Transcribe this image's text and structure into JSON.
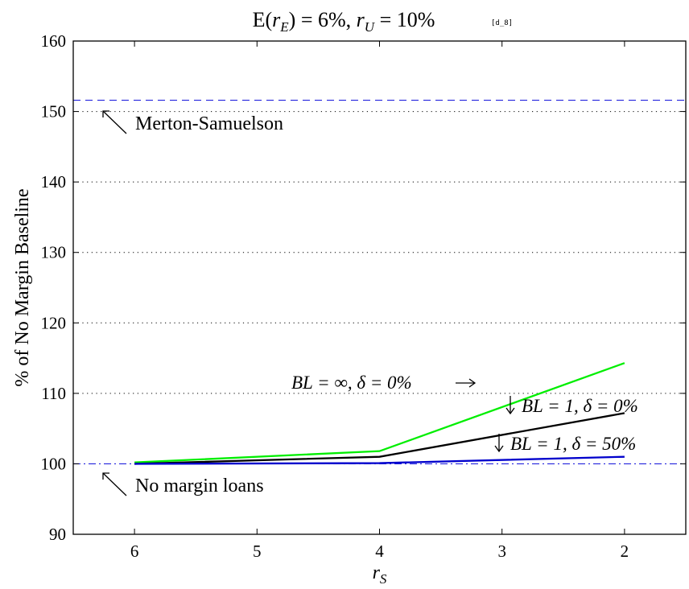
{
  "chart_data": {
    "type": "line",
    "title": "E(r_E) = 6%, r_U = 10%",
    "title_tag": "[d_8]",
    "xlabel": "r_S",
    "ylabel": "% of No Margin Baseline",
    "x_reversed": true,
    "xlim": [
      6.5,
      1.5
    ],
    "ylim": [
      90,
      160
    ],
    "x_ticks": [
      6,
      5,
      4,
      3,
      2
    ],
    "y_ticks": [
      90,
      100,
      110,
      120,
      130,
      140,
      150,
      160
    ],
    "grid_y_dotted": [
      110,
      120,
      130,
      140,
      150
    ],
    "x": [
      6,
      4,
      2
    ],
    "series": [
      {
        "name": "BL = ∞, δ = 0%",
        "color": "#00ee00",
        "values": [
          100.2,
          101.8,
          114.3
        ]
      },
      {
        "name": "BL = 1, δ = 0%",
        "color": "#000000",
        "values": [
          100.0,
          101.0,
          107.2
        ]
      },
      {
        "name": "BL = 1, δ = 50%",
        "color": "#0000cc",
        "values": [
          100.0,
          100.1,
          101.0
        ]
      }
    ],
    "reference_lines": [
      {
        "name": "Merton-Samuelson",
        "value": 151.6,
        "color": "#2222dd",
        "style": "dashed"
      },
      {
        "name": "No margin loans",
        "value": 100,
        "color": "#2222dd",
        "style": "dashdot"
      }
    ],
    "annotations": {
      "merton": "Merton-Samuelson",
      "no_margin": "No margin loans",
      "green": "BL = ∞, δ = 0%",
      "black": "BL = 1, δ = 0%",
      "blue": "BL = 1, δ = 50%"
    }
  }
}
